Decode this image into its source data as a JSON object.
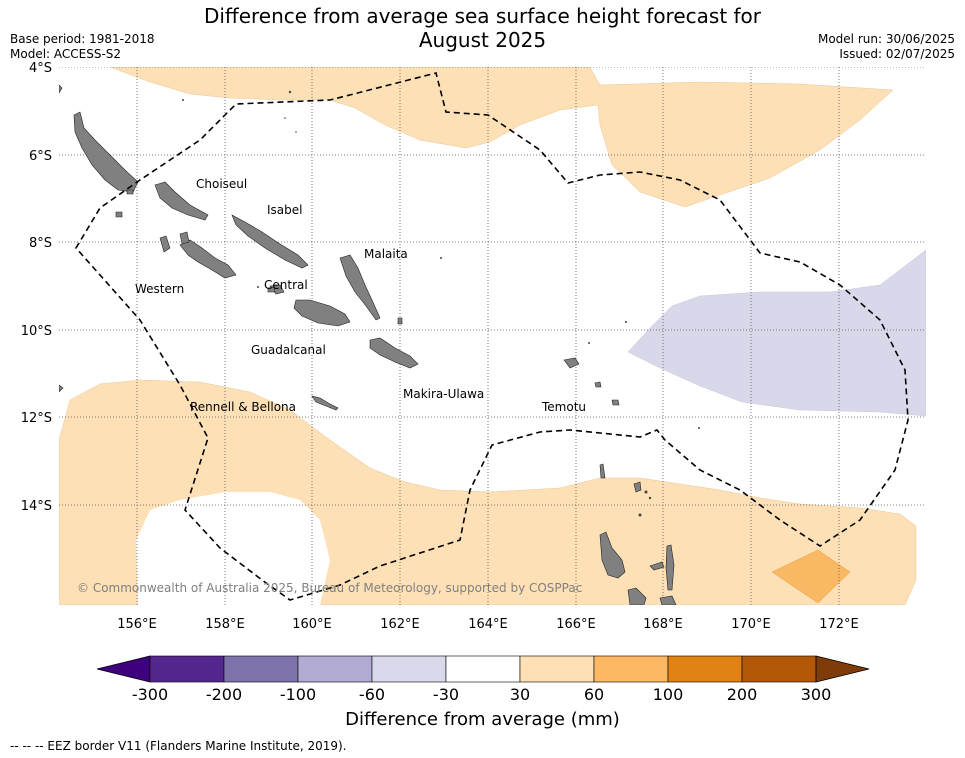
{
  "title": {
    "line1": "Difference from average sea surface height forecast for",
    "line2": "August 2025"
  },
  "meta": {
    "base_period": "Base period: 1981-2018",
    "model": "Model: ACCESS-S2",
    "model_run": "Model run: 30/06/2025",
    "issued": "Issued: 02/07/2025"
  },
  "map": {
    "lat_labels": [
      "4°S",
      "6°S",
      "8°S",
      "10°S",
      "12°S",
      "14°S"
    ],
    "lon_labels": [
      "156°E",
      "158°E",
      "160°E",
      "162°E",
      "164°E",
      "166°E",
      "168°E",
      "170°E",
      "172°E"
    ],
    "region_labels": [
      "Choiseul",
      "Isabel",
      "Malaita",
      "Western",
      "Central",
      "Guadalcanal",
      "Makira-Ulawa",
      "Rennell & Bellona",
      "Temotu"
    ],
    "copyright": "© Commonwealth of Australia 2025, Bureau of Meteorology, supported by COSPPac",
    "colors": {
      "land": "#808080",
      "anomaly_30_60": "#fde0b6",
      "anomaly_60_100": "#f8b864",
      "anomaly_neg60_neg30": "#d8d8ea",
      "eez_border": "#000000"
    }
  },
  "colorbar": {
    "title": "Difference from average (mm)",
    "ticks": [
      "-300",
      "-200",
      "-100",
      "-60",
      "-30",
      "30",
      "60",
      "100",
      "200",
      "300"
    ],
    "colors": [
      "#3f007d",
      "#54278f",
      "#8073ac",
      "#b2abd2",
      "#d8daeb",
      "#ffffff",
      "#fee0b6",
      "#fdb863",
      "#e08214",
      "#b35806",
      "#7f3b08"
    ]
  },
  "footnote": "--  --  -- EEZ border V11 (Flanders Marine Institute, 2019)."
}
